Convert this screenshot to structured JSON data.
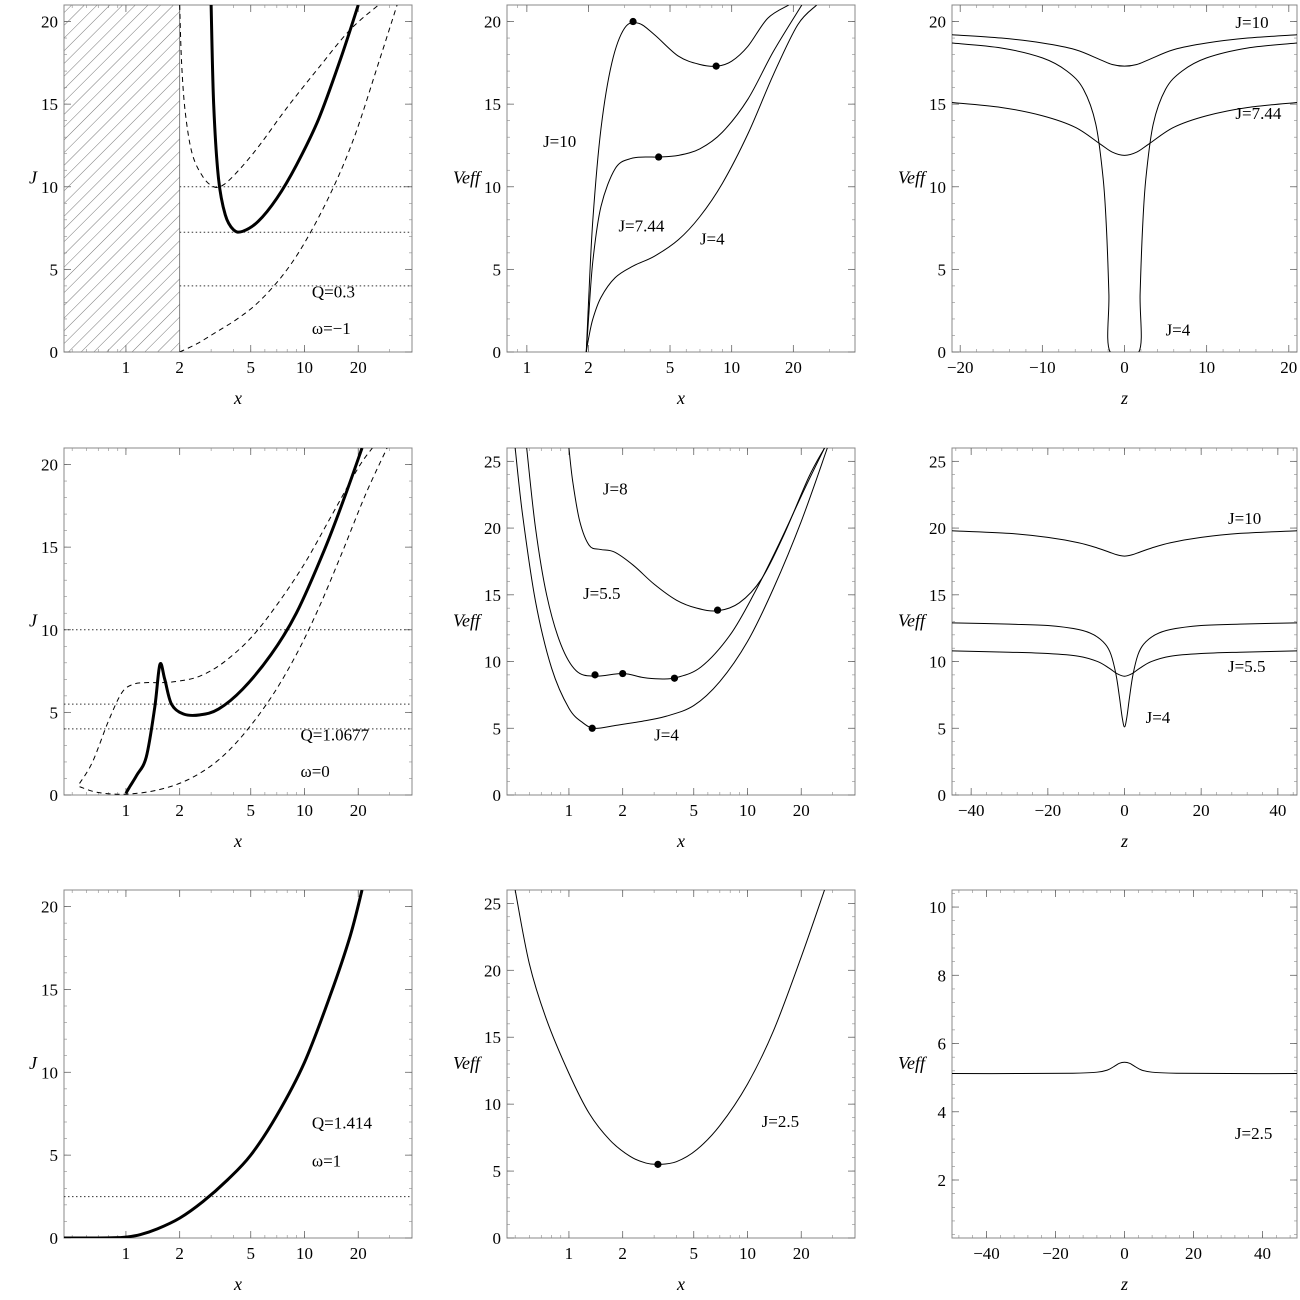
{
  "chart_data": [
    {
      "id": "r1c1",
      "type": "line",
      "xscale": "log",
      "xlim": [
        0.45,
        40
      ],
      "ylim": [
        0,
        21
      ],
      "xticks": [
        1,
        2,
        5,
        10,
        20
      ],
      "yticks": [
        0,
        5,
        10,
        15,
        20
      ],
      "xlabel": "x",
      "ylabel": "J",
      "hatch_region": [
        0.45,
        2
      ],
      "hlines": [
        10,
        7.25,
        4
      ],
      "series": [
        {
          "style": "thick",
          "x": [
            3.0,
            3.1,
            3.3,
            3.6,
            4.0,
            4.5,
            5.5,
            7,
            9,
            12,
            16,
            20
          ],
          "y": [
            21,
            15,
            10.5,
            8.3,
            7.4,
            7.3,
            7.9,
            9.3,
            11.3,
            14.1,
            17.8,
            21
          ]
        },
        {
          "style": "dashed",
          "x": [
            2.0,
            2.05,
            2.15,
            2.35,
            2.7,
            3.1,
            3.5,
            4.2,
            5.5,
            8,
            12,
            18,
            26
          ],
          "y": [
            21,
            17.5,
            14.5,
            12.0,
            10.6,
            10.0,
            10.1,
            10.9,
            12.4,
            14.8,
            17.2,
            19.5,
            21
          ]
        },
        {
          "style": "dashed",
          "x": [
            2.0,
            2.5,
            3.2,
            4.2,
            5.5,
            7.5,
            10,
            14,
            19,
            26,
            33
          ],
          "y": [
            0,
            0.5,
            1.2,
            2.0,
            3.0,
            4.6,
            6.6,
            9.6,
            13.0,
            17.5,
            21
          ]
        }
      ],
      "annotations": [
        {
          "text": "Q=0.3",
          "x": 11,
          "y": 3.3
        },
        {
          "text": "ω=−1",
          "x": 11,
          "y": 1.1
        }
      ]
    },
    {
      "id": "r1c2",
      "type": "line",
      "xscale": "log",
      "xlim": [
        0.8,
        40
      ],
      "ylim": [
        0,
        21
      ],
      "xticks": [
        1,
        2,
        5,
        10,
        20
      ],
      "yticks": [
        0,
        5,
        10,
        15,
        20
      ],
      "xlabel": "x",
      "ylabel": "Veff",
      "series": [
        {
          "name": "J=10",
          "x": [
            1.95,
            2.0,
            2.1,
            2.3,
            2.6,
            3.0,
            3.5,
            4.2,
            5.5,
            7,
            8.5,
            10,
            12,
            15,
            19
          ],
          "y": [
            0,
            3,
            8,
            13.5,
            17.5,
            19.6,
            19.9,
            19.2,
            17.9,
            17.4,
            17.3,
            17.6,
            18.5,
            20.2,
            21
          ]
        },
        {
          "name": "J=7.44",
          "x": [
            1.95,
            2.0,
            2.1,
            2.3,
            2.7,
            3.2,
            3.8,
            4.4,
            5.5,
            7,
            9,
            12,
            16,
            22
          ],
          "y": [
            0,
            2,
            5.5,
            8.8,
            11.1,
            11.7,
            11.8,
            11.8,
            11.9,
            12.3,
            13.3,
            15.3,
            18.2,
            21
          ]
        },
        {
          "name": "J=4",
          "x": [
            1.95,
            2.0,
            2.1,
            2.3,
            2.7,
            3.3,
            4.2,
            5.5,
            7,
            9,
            12,
            16,
            21,
            26
          ],
          "y": [
            0,
            0.8,
            2.0,
            3.3,
            4.5,
            5.2,
            5.8,
            6.8,
            8.2,
            10.2,
            13.2,
            16.8,
            19.8,
            21
          ]
        }
      ],
      "points": [
        {
          "x": 3.3,
          "y": 20.0
        },
        {
          "x": 8.4,
          "y": 17.3
        },
        {
          "x": 4.4,
          "y": 11.8
        }
      ],
      "annotations": [
        {
          "text": "J=10",
          "x": 1.2,
          "y": 12.4
        },
        {
          "text": "J=7.44",
          "x": 2.8,
          "y": 7.3
        },
        {
          "text": "J=4",
          "x": 7.0,
          "y": 6.5
        }
      ]
    },
    {
      "id": "r1c3",
      "type": "line",
      "xscale": "linear",
      "xlim": [
        -21,
        21
      ],
      "ylim": [
        0,
        21
      ],
      "xticks": [
        -20,
        -10,
        0,
        10,
        20
      ],
      "yticks": [
        0,
        5,
        10,
        15,
        20
      ],
      "xlabel": "z",
      "ylabel": "Veff",
      "series": [
        {
          "name": "J=10",
          "x": [
            -21,
            -15,
            -10,
            -6,
            -3,
            -1.5,
            0,
            1.5,
            3,
            6,
            10,
            15,
            21
          ],
          "y": [
            19.2,
            19.0,
            18.7,
            18.3,
            17.7,
            17.4,
            17.3,
            17.4,
            17.7,
            18.3,
            18.7,
            19.0,
            19.2
          ]
        },
        {
          "name": "J=7.44",
          "x": [
            -21,
            -15,
            -10,
            -6,
            -3,
            -1.5,
            0,
            1.5,
            3,
            6,
            10,
            15,
            21
          ],
          "y": [
            15.1,
            14.8,
            14.3,
            13.6,
            12.6,
            12.1,
            11.9,
            12.1,
            12.6,
            13.6,
            14.3,
            14.8,
            15.1
          ]
        },
        {
          "name": "J=4",
          "x": [
            -21,
            -15,
            -10,
            -7,
            -5,
            -3.5,
            -2.6,
            -2.2,
            -1.9,
            -1.75
          ],
          "y": [
            18.7,
            18.4,
            17.8,
            17.0,
            15.9,
            13.8,
            10.5,
            7.5,
            3.5,
            0
          ],
          "mirror": true
        }
      ],
      "annotations": [
        {
          "text": "J=10",
          "x": 13.5,
          "y": 19.6
        },
        {
          "text": "J=7.44",
          "x": 13.5,
          "y": 14.1
        },
        {
          "text": "J=4",
          "x": 5.0,
          "y": 1.0
        }
      ]
    },
    {
      "id": "r2c1",
      "type": "line",
      "xscale": "log",
      "xlim": [
        0.45,
        40
      ],
      "ylim": [
        0,
        21
      ],
      "xticks": [
        1,
        2,
        5,
        10,
        20
      ],
      "yticks": [
        0,
        5,
        10,
        15,
        20
      ],
      "xlabel": "x",
      "ylabel": "J",
      "hlines": [
        10,
        5.5,
        4
      ],
      "series": [
        {
          "style": "thick",
          "x": [
            1.0,
            1.05,
            1.15,
            1.3,
            1.45,
            1.55,
            1.65,
            1.8,
            2.1,
            2.6,
            3.3,
            4.5,
            6.5,
            9,
            13,
            17,
            21
          ],
          "y": [
            0.1,
            0.5,
            1.2,
            2.3,
            5.3,
            7.9,
            7.0,
            5.5,
            4.9,
            4.85,
            5.2,
            6.4,
            8.5,
            11.0,
            14.9,
            18.2,
            21
          ]
        },
        {
          "style": "dashed",
          "x": [
            0.55,
            0.65,
            0.8,
            0.95,
            1.1,
            1.3,
            1.6,
            2.0,
            2.6,
            3.5,
            5,
            7,
            10,
            14,
            20,
            24
          ],
          "y": [
            0.7,
            2.0,
            4.5,
            6.2,
            6.7,
            6.8,
            6.8,
            6.9,
            7.2,
            8.0,
            9.5,
            11.5,
            14.0,
            16.8,
            19.8,
            21
          ]
        },
        {
          "style": "dashed",
          "x": [
            0.55,
            0.7,
            1.0,
            1.5,
            2.2,
            3.2,
            4.5,
            6.5,
            9,
            12,
            16,
            22,
            29
          ],
          "y": [
            0.5,
            0.15,
            0.05,
            0.3,
            0.9,
            2.0,
            3.6,
            5.9,
            8.5,
            11.3,
            14.5,
            18.2,
            21
          ]
        }
      ],
      "annotations": [
        {
          "text": "Q=1.0677",
          "x": 9.5,
          "y": 3.3
        },
        {
          "text": "ω=0",
          "x": 9.5,
          "y": 1.1
        }
      ]
    },
    {
      "id": "r2c2",
      "type": "line",
      "xscale": "log",
      "xlim": [
        0.45,
        40
      ],
      "ylim": [
        0,
        26
      ],
      "xticks": [
        1,
        2,
        5,
        10,
        20
      ],
      "yticks": [
        0,
        5,
        10,
        15,
        20,
        25
      ],
      "xlabel": "x",
      "ylabel": "Veff",
      "series": [
        {
          "name": "J=8",
          "x": [
            1.0,
            1.05,
            1.15,
            1.3,
            1.5,
            1.8,
            2.3,
            3.0,
            4.0,
            5.2,
            6.8,
            9,
            12,
            16,
            22,
            27
          ],
          "y": [
            26,
            23.5,
            20.5,
            18.7,
            18.4,
            18.2,
            17.2,
            15.8,
            14.6,
            14.0,
            13.8,
            14.4,
            16.2,
            19.5,
            23.8,
            26
          ]
        },
        {
          "name": "J=5.5",
          "x": [
            0.58,
            0.65,
            0.75,
            0.9,
            1.1,
            1.4,
            2.0,
            2.6,
            3.2,
            4.0,
            5.5,
            8,
            11,
            15,
            21,
            27
          ],
          "y": [
            26,
            20,
            15,
            11.3,
            9.3,
            8.9,
            9.1,
            8.8,
            8.7,
            8.8,
            9.6,
            12.0,
            15.2,
            18.8,
            23.0,
            26
          ]
        },
        {
          "name": "J=4",
          "x": [
            0.5,
            0.55,
            0.65,
            0.8,
            1.0,
            1.2,
            1.4,
            1.8,
            2.5,
            3.5,
            5,
            7,
            10,
            14,
            20,
            28
          ],
          "y": [
            26,
            21,
            14.5,
            9.5,
            6.5,
            5.4,
            5.0,
            5.2,
            5.5,
            5.9,
            6.7,
            8.5,
            11.5,
            15.5,
            20.5,
            26
          ]
        }
      ],
      "points": [
        {
          "x": 6.8,
          "y": 13.85
        },
        {
          "x": 1.4,
          "y": 9.0
        },
        {
          "x": 2.0,
          "y": 9.1
        },
        {
          "x": 3.9,
          "y": 8.75
        },
        {
          "x": 1.35,
          "y": 5.0
        }
      ],
      "annotations": [
        {
          "text": "J=8",
          "x": 1.55,
          "y": 22.5
        },
        {
          "text": "J=5.5",
          "x": 1.2,
          "y": 14.7
        },
        {
          "text": "J=4",
          "x": 3.0,
          "y": 4.1
        }
      ]
    },
    {
      "id": "r2c3",
      "type": "line",
      "xscale": "linear",
      "xlim": [
        -45,
        45
      ],
      "ylim": [
        0,
        26
      ],
      "xticks": [
        -40,
        -20,
        0,
        20,
        40
      ],
      "yticks": [
        0,
        5,
        10,
        15,
        20,
        25
      ],
      "xlabel": "z",
      "ylabel": "Veff",
      "series": [
        {
          "name": "J=10",
          "x": [
            -45,
            -30,
            -20,
            -12,
            -7,
            -4,
            -2,
            0,
            2,
            4,
            7,
            12,
            20,
            30,
            45
          ],
          "y": [
            19.8,
            19.6,
            19.3,
            18.9,
            18.5,
            18.2,
            18.0,
            17.9,
            18.0,
            18.2,
            18.5,
            18.9,
            19.3,
            19.6,
            19.8
          ]
        },
        {
          "name": "J=5.5",
          "x": [
            -45,
            -30,
            -20,
            -12,
            -7,
            -4,
            -2,
            0,
            2,
            4,
            7,
            12,
            20,
            30,
            45
          ],
          "y": [
            10.8,
            10.7,
            10.6,
            10.4,
            10.0,
            9.5,
            9.1,
            8.9,
            9.1,
            9.5,
            10.0,
            10.4,
            10.6,
            10.7,
            10.8
          ]
        },
        {
          "name": "J=4",
          "x": [
            -45,
            -30,
            -20,
            -12,
            -8,
            -5,
            -3.5,
            -2.2,
            -1.3,
            -0.6,
            0,
            0.6,
            1.3,
            2.2,
            3.5,
            5,
            8,
            12,
            20,
            30,
            45
          ],
          "y": [
            12.9,
            12.8,
            12.7,
            12.4,
            12.0,
            11.3,
            10.5,
            9.0,
            7.3,
            5.8,
            5.1,
            5.8,
            7.3,
            9.0,
            10.5,
            11.3,
            12.0,
            12.4,
            12.7,
            12.8,
            12.9
          ]
        }
      ],
      "annotations": [
        {
          "text": "J=10",
          "x": 27,
          "y": 20.3
        },
        {
          "text": "J=5.5",
          "x": 27,
          "y": 9.2
        },
        {
          "text": "J=4",
          "x": 5.5,
          "y": 5.4
        }
      ]
    },
    {
      "id": "r3c1",
      "type": "line",
      "xscale": "log",
      "xlim": [
        0.45,
        40
      ],
      "ylim": [
        0,
        21
      ],
      "xticks": [
        1,
        2,
        5,
        10,
        20
      ],
      "yticks": [
        0,
        5,
        10,
        15,
        20
      ],
      "xlabel": "x",
      "ylabel": "J",
      "hlines": [
        2.5
      ],
      "series": [
        {
          "style": "thick",
          "x": [
            0.45,
            0.7,
            0.9,
            1.0,
            1.2,
            1.5,
            2.0,
            2.7,
            3.7,
            5.0,
            7.0,
            10,
            14,
            18,
            21
          ],
          "y": [
            0,
            0,
            0.02,
            0.05,
            0.2,
            0.55,
            1.2,
            2.2,
            3.5,
            5.0,
            7.4,
            10.6,
            14.7,
            18.2,
            21
          ]
        }
      ],
      "annotations": [
        {
          "text": "Q=1.414",
          "x": 11,
          "y": 6.6
        },
        {
          "text": "ω=1",
          "x": 11,
          "y": 4.3
        }
      ]
    },
    {
      "id": "r3c2",
      "type": "line",
      "xscale": "log",
      "xlim": [
        0.45,
        40
      ],
      "ylim": [
        0,
        26
      ],
      "xticks": [
        1,
        2,
        5,
        10,
        20
      ],
      "yticks": [
        0,
        5,
        10,
        15,
        20,
        25
      ],
      "xlabel": "x",
      "ylabel": "Veff",
      "series": [
        {
          "name": "J=2.5",
          "x": [
            0.5,
            0.6,
            0.75,
            1.0,
            1.3,
            1.7,
            2.2,
            2.7,
            3.2,
            4.0,
            5.2,
            7,
            10,
            14,
            20,
            27
          ],
          "y": [
            26,
            20.5,
            16.3,
            12.3,
            9.3,
            7.3,
            6.1,
            5.6,
            5.5,
            5.7,
            6.6,
            8.4,
            11.5,
            15.5,
            21.0,
            26
          ]
        }
      ],
      "points": [
        {
          "x": 3.15,
          "y": 5.5
        }
      ],
      "annotations": [
        {
          "text": "J=2.5",
          "x": 12,
          "y": 8.3
        }
      ]
    },
    {
      "id": "r3c3",
      "type": "line",
      "xscale": "linear",
      "xlim": [
        -50,
        50
      ],
      "ylim": [
        0.3,
        10.5
      ],
      "xticks": [
        -40,
        -20,
        0,
        20,
        40
      ],
      "yticks": [
        2,
        4,
        6,
        8,
        10
      ],
      "xlabel": "z",
      "ylabel": "Veff",
      "series": [
        {
          "name": "J=2.5",
          "x": [
            -50,
            -30,
            -15,
            -8,
            -5,
            -3,
            -1.5,
            0,
            1.5,
            3,
            5,
            8,
            15,
            30,
            50
          ],
          "y": [
            5.12,
            5.12,
            5.13,
            5.16,
            5.22,
            5.33,
            5.42,
            5.45,
            5.42,
            5.33,
            5.22,
            5.16,
            5.13,
            5.12,
            5.12
          ]
        }
      ],
      "annotations": [
        {
          "text": "J=2.5",
          "x": 32,
          "y": 3.2
        }
      ]
    }
  ]
}
